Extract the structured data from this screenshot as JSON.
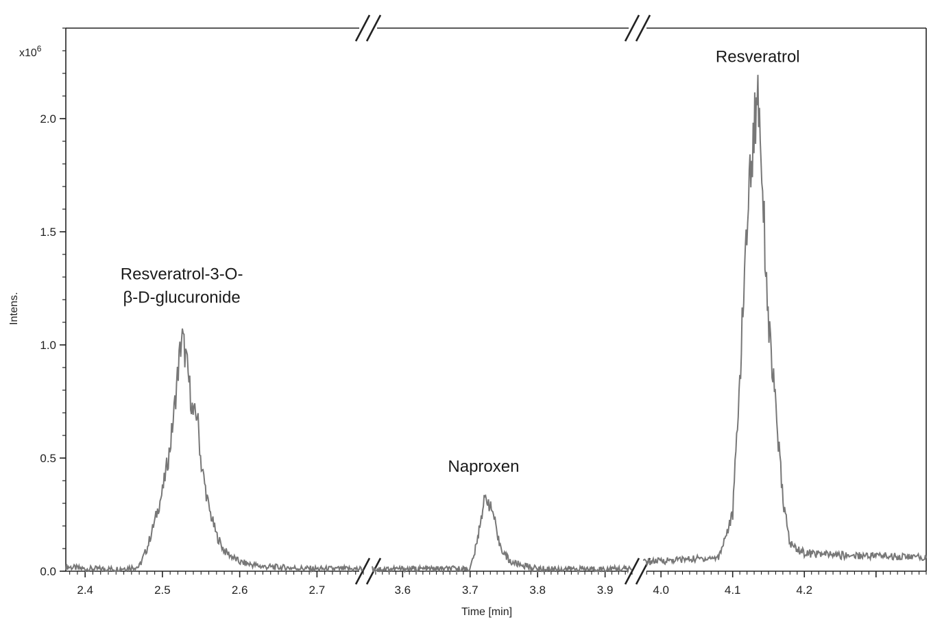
{
  "chart_data": {
    "type": "line",
    "xlabel": "Time [min]",
    "ylabel": "Intens.",
    "y_multiplier": "x10",
    "y_multiplier_exp": "6",
    "ylim": [
      0.0,
      2.4
    ],
    "x_segments": [
      {
        "xlim": [
          2.375,
          2.76
        ],
        "ticks": [
          "2.4",
          "2.5",
          "2.6",
          "2.7"
        ]
      },
      {
        "xlim": [
          3.555,
          3.94
        ],
        "ticks": [
          "3.6",
          "3.7",
          "3.8",
          "3.9"
        ]
      },
      {
        "xlim": [
          3.975,
          4.37
        ],
        "ticks": [
          "4.0",
          "4.1",
          "4.2"
        ]
      }
    ],
    "y_ticks": [
      "0.0",
      "0.5",
      "1.0",
      "1.5",
      "2.0"
    ],
    "y_tick_values": [
      0.0,
      0.5,
      1.0,
      1.5,
      2.0
    ],
    "series": [
      {
        "x": [
          2.375,
          2.4,
          2.44,
          2.47,
          2.48,
          2.49,
          2.5,
          2.51,
          2.515,
          2.52,
          2.525,
          2.53,
          2.535,
          2.54,
          2.545,
          2.55,
          2.56,
          2.57,
          2.58,
          2.6,
          2.63,
          2.7,
          2.76,
          3.555,
          3.65,
          3.7,
          3.71,
          3.715,
          3.72,
          3.725,
          3.73,
          3.735,
          3.74,
          3.75,
          3.76,
          3.8,
          3.94,
          3.975,
          4.02,
          4.08,
          4.1,
          4.11,
          4.12,
          4.125,
          4.13,
          4.135,
          4.14,
          4.145,
          4.15,
          4.16,
          4.17,
          4.18,
          4.2,
          4.25,
          4.3,
          4.37
        ],
        "y": [
          0.02,
          0.01,
          0.01,
          0.02,
          0.1,
          0.22,
          0.35,
          0.55,
          0.7,
          0.88,
          1.04,
          0.95,
          0.82,
          0.68,
          0.7,
          0.48,
          0.28,
          0.16,
          0.09,
          0.04,
          0.02,
          0.01,
          0.01,
          0.01,
          0.01,
          0.01,
          0.12,
          0.22,
          0.3,
          0.33,
          0.28,
          0.25,
          0.15,
          0.08,
          0.04,
          0.01,
          0.01,
          0.04,
          0.05,
          0.06,
          0.25,
          0.85,
          1.55,
          1.78,
          1.95,
          2.15,
          1.85,
          1.45,
          1.1,
          0.72,
          0.32,
          0.12,
          0.08,
          0.07,
          0.07,
          0.06
        ]
      }
    ],
    "annotations": [
      {
        "lines": [
          "Resveratrol-3-O-",
          "β-D-glucuronide"
        ],
        "x": 2.525,
        "y": 1.29
      },
      {
        "lines": [
          "Naproxen"
        ],
        "x": 3.72,
        "y": 0.44
      },
      {
        "lines": [
          "Resveratrol"
        ],
        "x": 4.135,
        "y": 2.25
      }
    ],
    "line_color": "#777777",
    "grid": false
  }
}
